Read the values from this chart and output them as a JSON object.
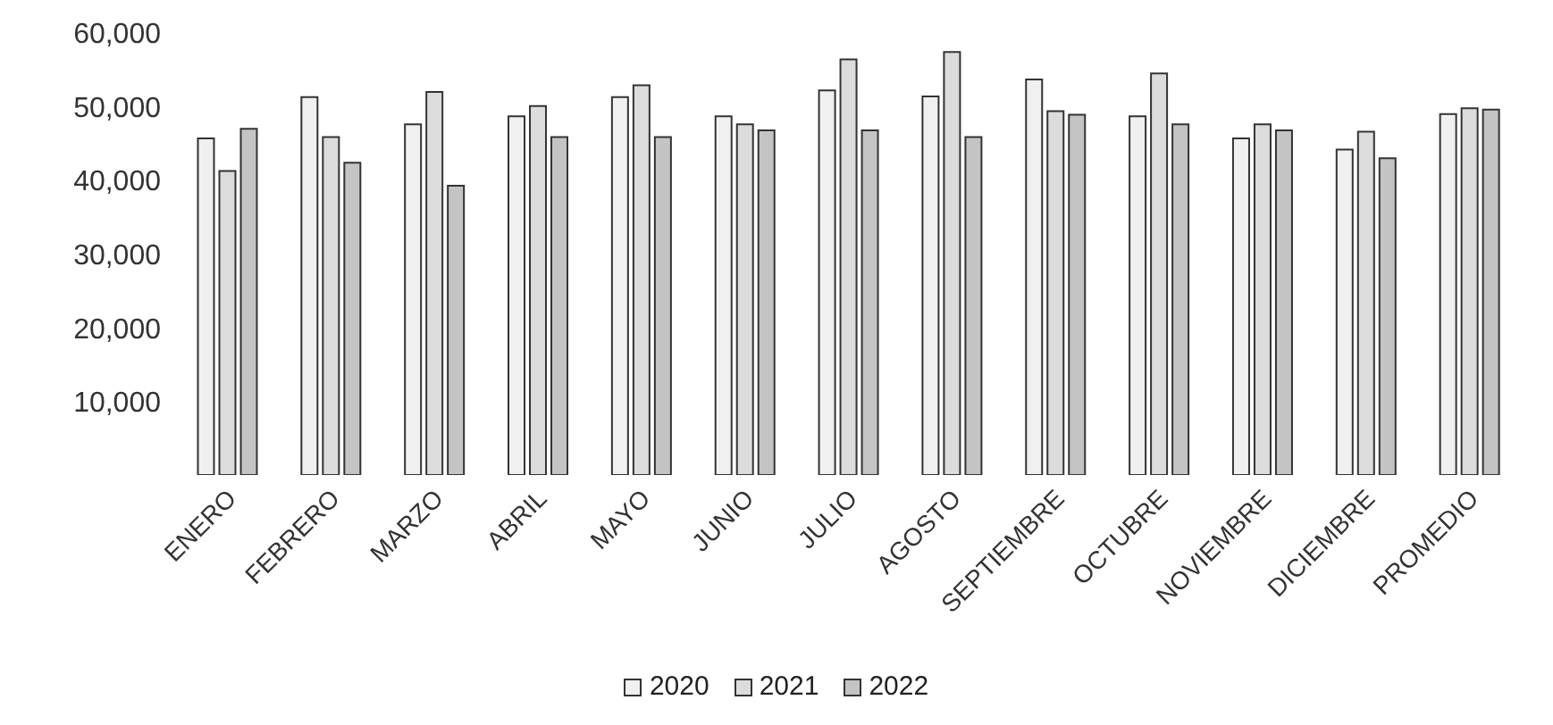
{
  "chart_data": {
    "type": "bar",
    "categories": [
      "ENERO",
      "FEBRERO",
      "MARZO",
      "ABRIL",
      "MAYO",
      "JUNIO",
      "JULIO",
      "AGOSTO",
      "SEPTIEMBRE",
      "OCTUBRE",
      "NOVIEMBRE",
      "DICIEMBRE",
      "PROMEDIO"
    ],
    "series": [
      {
        "name": "2020",
        "color": "#f0f0f0",
        "values": [
          45600,
          51200,
          47500,
          48600,
          51200,
          48600,
          52100,
          51300,
          53600,
          48600,
          45600,
          44100,
          48900
        ]
      },
      {
        "name": "2021",
        "color": "#dcdcdc",
        "values": [
          41200,
          45800,
          51900,
          50000,
          52800,
          47500,
          56300,
          57300,
          49300,
          54400,
          47500,
          46500,
          49700
        ]
      },
      {
        "name": "2022",
        "color": "#c4c4c4",
        "values": [
          46900,
          42300,
          39200,
          45800,
          45800,
          46700,
          46700,
          45800,
          48800,
          47500,
          46700,
          42900,
          49500
        ]
      }
    ],
    "ylim": [
      0,
      60000
    ],
    "yticks": [
      {
        "value": 10000,
        "label": "10,000"
      },
      {
        "value": 20000,
        "label": "20,000"
      },
      {
        "value": 30000,
        "label": "30,000"
      },
      {
        "value": 40000,
        "label": "40,000"
      },
      {
        "value": 50000,
        "label": "50,000"
      },
      {
        "value": 60000,
        "label": "60,000"
      }
    ],
    "grid": false,
    "legend": "bottom"
  }
}
